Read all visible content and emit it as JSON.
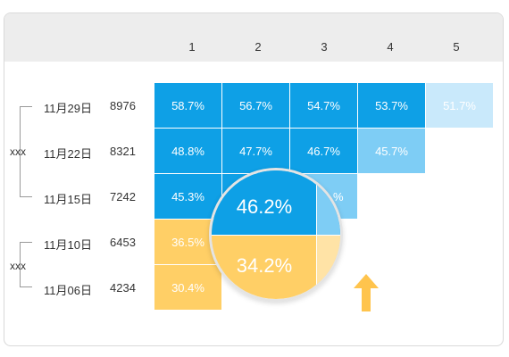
{
  "columns": [
    "1",
    "2",
    "3",
    "4",
    "5"
  ],
  "groups": [
    "xxx",
    "xxx"
  ],
  "rows": [
    {
      "date": "11月29日",
      "count": "8976",
      "cells": [
        "58.7%",
        "56.7%",
        "54.7%",
        "53.7%",
        "51.7%"
      ]
    },
    {
      "date": "11月22日",
      "count": "8321",
      "cells": [
        "48.8%",
        "47.7%",
        "46.7%",
        "45.7%"
      ]
    },
    {
      "date": "11月15日",
      "count": "7242",
      "cells": [
        "45.3%",
        "",
        "",
        "",
        ""
      ]
    },
    {
      "date": "11月10日",
      "count": "6453",
      "cells": [
        "36.5%"
      ]
    },
    {
      "date": "11月06日",
      "count": "4234",
      "cells": [
        "30.4%"
      ]
    }
  ],
  "partial_cell_text": "%",
  "magnifier": {
    "top_value": "46.2%",
    "bottom_value": "34.2%"
  },
  "colors": {
    "header_bg": "#ededed",
    "blue": "#0ea0e6",
    "mid_blue": "#7ecdf5",
    "light_blue": "#c9e9fb",
    "yellow": "#ffcf66",
    "light_yellow": "#ffe3a6",
    "arrow": "#ffc44d"
  },
  "icons": {
    "arrow": "arrow-up-icon"
  }
}
